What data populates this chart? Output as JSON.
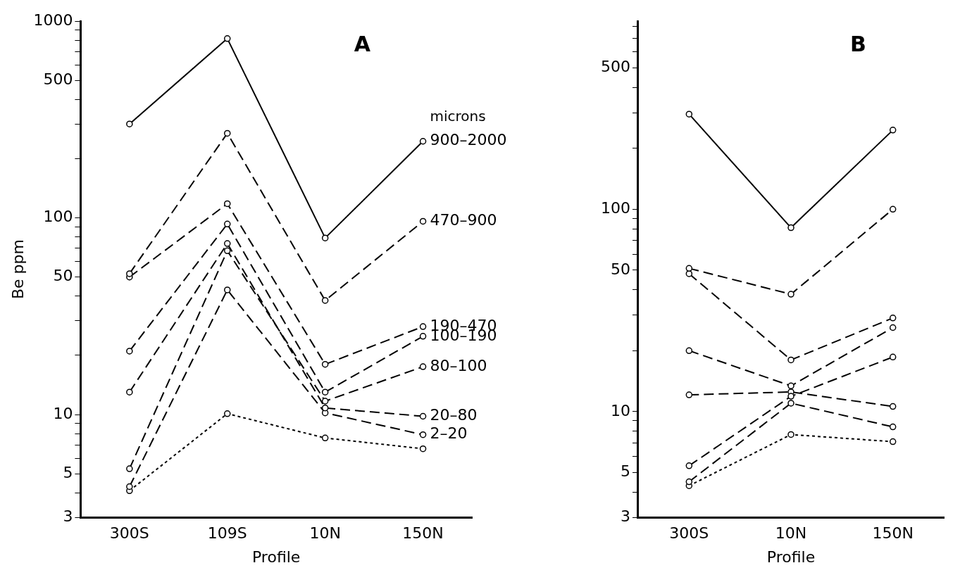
{
  "chart_data": [
    {
      "type": "line",
      "title": "A",
      "xlabel": "Profile",
      "ylabel": "Be ppm",
      "categories": [
        "300S",
        "109S",
        "10N",
        "150N"
      ],
      "log": true,
      "legend": false,
      "grid": false,
      "marker": "circle",
      "ylim": [
        3,
        1000
      ],
      "yticks": [
        3,
        {
          "value": 4,
          "label": null
        },
        5,
        {
          "value": 6,
          "label": null
        },
        {
          "value": 7,
          "label": null
        },
        {
          "value": 8,
          "label": null
        },
        {
          "value": 9,
          "label": null
        },
        10,
        {
          "value": 20,
          "label": null
        },
        {
          "value": 30,
          "label": null
        },
        {
          "value": 40,
          "label": null
        },
        50,
        {
          "value": 60,
          "label": null
        },
        {
          "value": 70,
          "label": null
        },
        {
          "value": 80,
          "label": null
        },
        {
          "value": 90,
          "label": null
        },
        100,
        {
          "value": 200,
          "label": null
        },
        {
          "value": 300,
          "label": null
        },
        {
          "value": 400,
          "label": null
        },
        500,
        {
          "value": 600,
          "label": null
        },
        {
          "value": 700,
          "label": null
        },
        {
          "value": 800,
          "label": null
        },
        {
          "value": 900,
          "label": null
        },
        1000
      ],
      "legend_title": "microns",
      "series": [
        {
          "name": "900–2000",
          "color": "#000000",
          "line_style": "solid",
          "values": [
            300,
            815,
            79,
            245
          ]
        },
        {
          "name": "470–900",
          "color": "#000000",
          "line_style": "dashed",
          "values": [
            52,
            269,
            38,
            96
          ]
        },
        {
          "name": "190–470",
          "color": "#000000",
          "line_style": "dashed",
          "values": [
            50,
            118,
            18,
            28
          ]
        },
        {
          "name": "100–190",
          "color": "#000000",
          "line_style": "dashed",
          "values": [
            21,
            93,
            13,
            25
          ]
        },
        {
          "name": "80–100",
          "color": "#000000",
          "line_style": "dashed",
          "values": [
            5.3,
            68,
            11.7,
            17.5
          ]
        },
        {
          "name": "20–80",
          "color": "#000000",
          "line_style": "dashed",
          "values": [
            13,
            74,
            10.8,
            9.8
          ]
        },
        {
          "name": "2–20",
          "color": "#000000",
          "line_style": "dashed",
          "values": [
            4.3,
            43,
            10.2,
            7.9
          ]
        },
        {
          "color": "#000000",
          "line_style": "dotted",
          "values": [
            4.1,
            10.1,
            7.6,
            6.7
          ]
        }
      ]
    },
    {
      "type": "line",
      "title": "B",
      "xlabel": "Profile",
      "categories": [
        "300S",
        "10N",
        "150N"
      ],
      "log": true,
      "legend": false,
      "grid": false,
      "marker": "circle",
      "ylim": [
        3,
        850
      ],
      "yticks": [
        3,
        {
          "value": 4,
          "label": null
        },
        5,
        {
          "value": 6,
          "label": null
        },
        {
          "value": 7,
          "label": null
        },
        {
          "value": 8,
          "label": null
        },
        {
          "value": 9,
          "label": null
        },
        10,
        {
          "value": 20,
          "label": null
        },
        {
          "value": 30,
          "label": null
        },
        {
          "value": 40,
          "label": null
        },
        50,
        {
          "value": 60,
          "label": null
        },
        {
          "value": 70,
          "label": null
        },
        {
          "value": 80,
          "label": null
        },
        {
          "value": 90,
          "label": null
        },
        100,
        {
          "value": 200,
          "label": null
        },
        {
          "value": 300,
          "label": null
        },
        {
          "value": 400,
          "label": null
        },
        500,
        {
          "value": 600,
          "label": null
        },
        {
          "value": 700,
          "label": null
        },
        {
          "value": 800,
          "label": null
        }
      ],
      "series": [
        {
          "color": "#000000",
          "line_style": "solid",
          "values": [
            295,
            81,
            246
          ]
        },
        {
          "color": "#000000",
          "line_style": "dashed",
          "values": [
            51,
            38,
            100
          ]
        },
        {
          "color": "#000000",
          "line_style": "dashed",
          "values": [
            48,
            18,
            29
          ]
        },
        {
          "color": "#000000",
          "line_style": "dashed",
          "values": [
            20,
            13.4,
            26
          ]
        },
        {
          "color": "#000000",
          "line_style": "dashed",
          "values": [
            5.4,
            11.9,
            18.6
          ]
        },
        {
          "color": "#000000",
          "line_style": "dashed",
          "values": [
            12.1,
            12.5,
            10.6
          ]
        },
        {
          "color": "#000000",
          "line_style": "dashed",
          "values": [
            4.5,
            11,
            8.4
          ]
        },
        {
          "color": "#000000",
          "line_style": "dotted",
          "values": [
            4.3,
            7.7,
            7.1
          ]
        }
      ]
    }
  ]
}
